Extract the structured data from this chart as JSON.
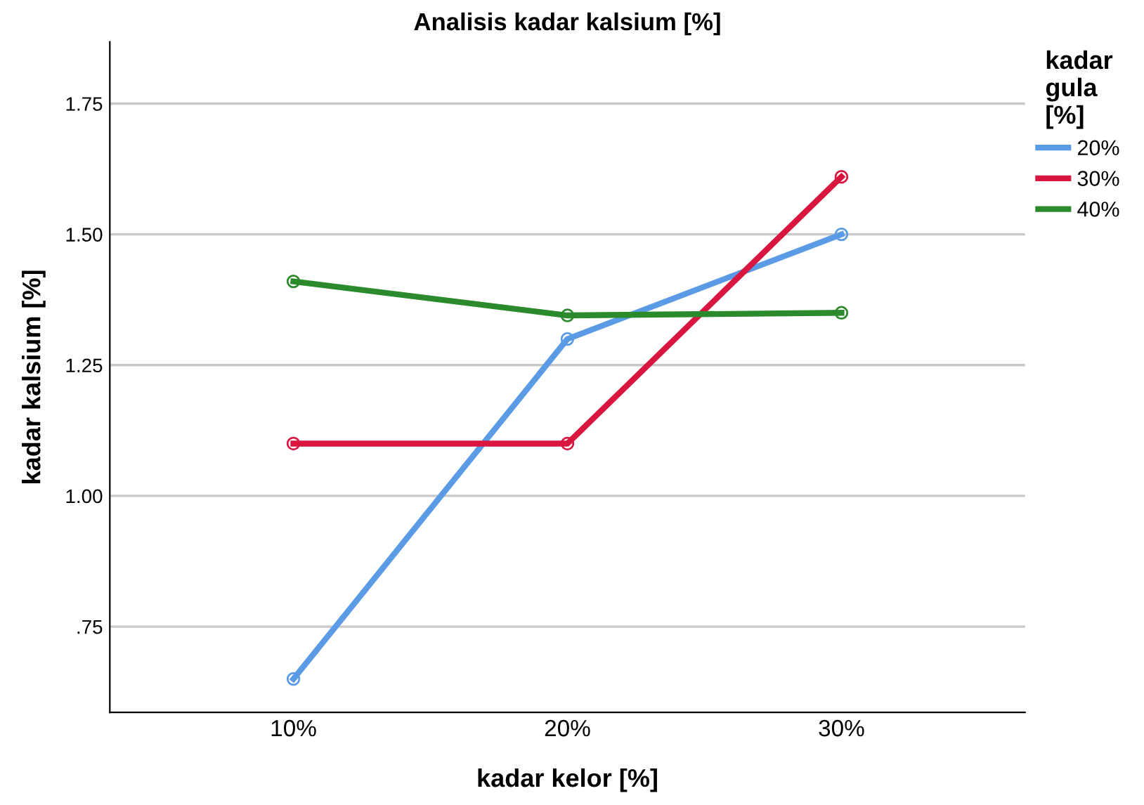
{
  "chart_data": {
    "type": "line",
    "title": "Analisis kadar kalsium [%]",
    "xlabel": "kadar kelor [%]",
    "ylabel": "kadar kalsium [%]",
    "legend_title": "kadar gula [%]",
    "categories": [
      "10%",
      "20%",
      "30%"
    ],
    "series": [
      {
        "name": "20%",
        "color": "#5b9be6",
        "values": [
          0.65,
          1.3,
          1.5
        ]
      },
      {
        "name": "30%",
        "color": "#d8163f",
        "values": [
          1.1,
          1.1,
          1.61
        ]
      },
      {
        "name": "40%",
        "color": "#2b8a2b",
        "values": [
          1.41,
          1.345,
          1.35
        ]
      }
    ],
    "ylim": [
      0.586,
      1.868
    ],
    "yticks": [
      {
        "value": 0.75,
        "label": ".75"
      },
      {
        "value": 1.0,
        "label": "1.00"
      },
      {
        "value": 1.25,
        "label": "1.25"
      },
      {
        "value": 1.5,
        "label": "1.50"
      },
      {
        "value": 1.75,
        "label": "1.75"
      }
    ],
    "grid": "y",
    "legend": "right",
    "marker": "circle",
    "line_style": "solid"
  }
}
